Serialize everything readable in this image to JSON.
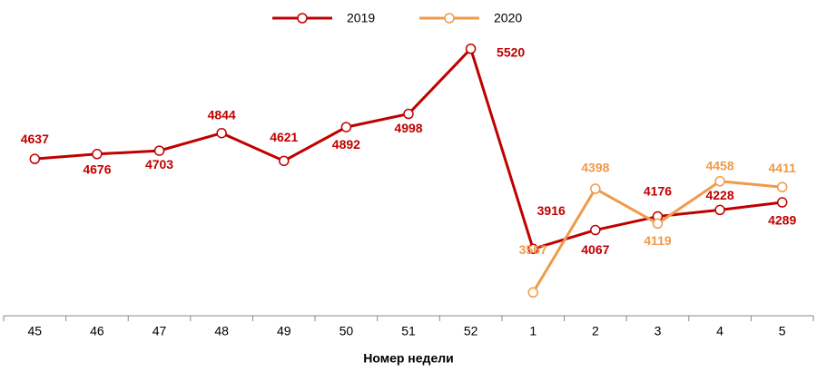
{
  "chart_data": {
    "type": "line",
    "x_label": "Номер недели",
    "categories": [
      "45",
      "46",
      "47",
      "48",
      "49",
      "50",
      "51",
      "52",
      "1",
      "2",
      "3",
      "4",
      "5"
    ],
    "series": [
      {
        "name": "2019",
        "color": "#c00000",
        "values": [
          4637,
          4676,
          4703,
          4844,
          4621,
          4892,
          4998,
          5520,
          3916,
          4067,
          4176,
          4228,
          4289
        ]
      },
      {
        "name": "2020",
        "color": "#f09a4a",
        "values": [
          null,
          null,
          null,
          null,
          null,
          null,
          null,
          null,
          3567,
          4398,
          4119,
          4458,
          4411
        ]
      }
    ],
    "ylim": [
      3380,
      5620
    ],
    "legend": "top"
  }
}
